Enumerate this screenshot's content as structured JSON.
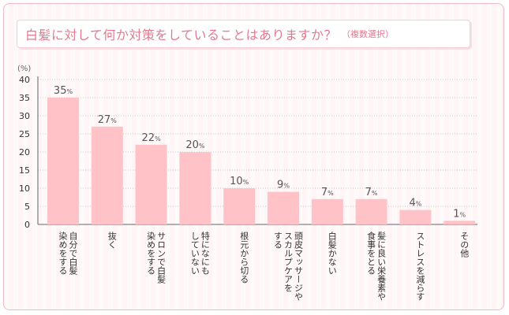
{
  "title": "白髪に対して何か対策をしていることはありますか？",
  "subtitle": "（複数選択）",
  "unit_label": "(%)",
  "colors": {
    "bar": "#ffc2c7",
    "title": "#e4788f",
    "axis": "#666666",
    "value": "#555555"
  },
  "chart_data": {
    "type": "bar",
    "title": "白髪に対して何か対策をしていることはありますか？",
    "ylabel": "(%)",
    "ylim": [
      0,
      40
    ],
    "yticks": [
      0,
      5,
      10,
      15,
      20,
      25,
      30,
      35,
      40
    ],
    "grid": true,
    "categories": [
      "自分で白髪\n染めをする",
      "抜く",
      "サロンで白髪\n染めをする",
      "特になにも\nしていない",
      "根元から切る",
      "頭皮マッサージや\nスカルプケアを\nする",
      "白髪かない",
      "髪に良い栄養素や\n食事をとる",
      "ストレスを減らす",
      "その他"
    ],
    "values": [
      35,
      27,
      22,
      20,
      10,
      9,
      7,
      7,
      4,
      1
    ],
    "value_suffix": "%"
  }
}
